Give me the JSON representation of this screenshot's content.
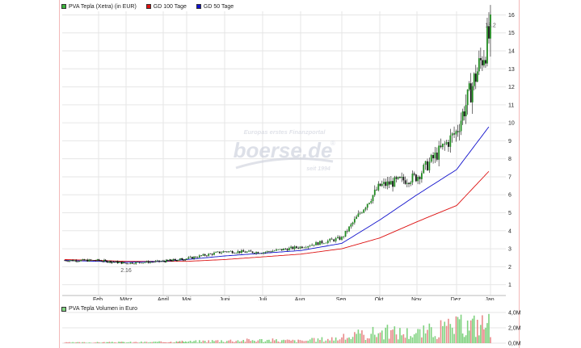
{
  "legend": {
    "price_label": "PVA Tepla (Xetra) (in EUR)",
    "sma100_label": "GD 100 Tage",
    "sma50_label": "GD 50 Tage",
    "volume_label": "PVA Tepla Volumen in Euro"
  },
  "colors": {
    "price": "#1f8a1f",
    "price_swatch": "#3cb43c",
    "sma100": "#dd1111",
    "sma50": "#1111cc",
    "vol_up": "#7fd27f",
    "vol_down": "#e88a8a",
    "grid": "#e6e6e6"
  },
  "watermark": {
    "top": "Europas erstes Finanzportal",
    "brand": "boerse.de",
    "registered": "®",
    "bottom": "seit 1994"
  },
  "chart_data": [
    {
      "type": "candlestick",
      "title": "PVA Tepla (Xetra) (in EUR)",
      "x_tick_labels": [
        "Feb.",
        "März",
        "April",
        "Mai",
        "Juni",
        "Juli",
        "Aug.",
        "Sep.",
        "Okt.",
        "Nov.",
        "Dez.",
        "Jan."
      ],
      "y_tick_labels": [
        "1",
        "2",
        "3",
        "4",
        "5",
        "6",
        "7",
        "8",
        "9",
        "10",
        "11",
        "12",
        "13",
        "14",
        "15",
        "16"
      ],
      "ylim": [
        0.4,
        16.2
      ],
      "grid": true,
      "annotations": [
        {
          "label": "2.16",
          "month": "März",
          "value": 2.16,
          "kind": "low"
        },
        {
          "label": "15.2",
          "month": "Jan.",
          "value": 15.2,
          "kind": "high"
        }
      ],
      "series": [
        {
          "name": "PVA Tepla (Xetra) (in EUR)",
          "kind": "close",
          "x": [
            "Jan",
            "Feb",
            "März",
            "April",
            "Mai",
            "Juni",
            "Juli",
            "Aug.",
            "Sep.",
            "Okt.",
            "Nov.",
            "Dez.",
            "Jan."
          ],
          "values": [
            2.35,
            2.35,
            2.2,
            2.3,
            2.45,
            2.85,
            2.8,
            3.1,
            3.6,
            6.5,
            7.0,
            9.5,
            15.0
          ]
        },
        {
          "name": "GD 100 Tage",
          "x": [
            "Jan",
            "Feb",
            "März",
            "April",
            "Mai",
            "Juni",
            "Juli",
            "Aug.",
            "Sep.",
            "Okt.",
            "Nov.",
            "Dez.",
            "Jan."
          ],
          "values": [
            2.4,
            2.35,
            2.3,
            2.3,
            2.3,
            2.4,
            2.55,
            2.7,
            3.0,
            3.6,
            4.5,
            5.4,
            7.4
          ]
        },
        {
          "name": "GD 50 Tage",
          "x": [
            "Jan",
            "Feb",
            "März",
            "April",
            "Mai",
            "Juni",
            "Juli",
            "Aug.",
            "Sep.",
            "Okt.",
            "Nov.",
            "Dez.",
            "Jan."
          ],
          "values": [
            2.35,
            2.3,
            2.25,
            2.3,
            2.4,
            2.6,
            2.75,
            2.9,
            3.3,
            4.6,
            6.0,
            7.4,
            9.9
          ]
        }
      ]
    },
    {
      "type": "bar",
      "title": "PVA Tepla Volumen in Euro",
      "y_tick_labels": [
        "0,0M",
        "2,0M",
        "4,0M"
      ],
      "ylim": [
        0,
        4.0
      ],
      "unit": "M EUR",
      "x": [
        "Feb.",
        "März",
        "April",
        "Mai",
        "Juni",
        "Juli",
        "Aug.",
        "Sep.",
        "Okt.",
        "Nov.",
        "Dez.",
        "Jan."
      ],
      "values": [
        0.1,
        0.12,
        0.15,
        0.2,
        0.35,
        0.4,
        0.3,
        0.7,
        1.5,
        1.3,
        2.2,
        2.6
      ]
    }
  ]
}
